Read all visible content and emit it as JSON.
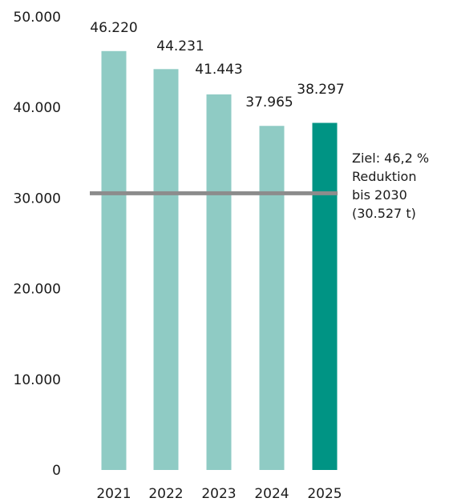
{
  "chart_data": {
    "type": "bar",
    "categories": [
      "2021",
      "2022",
      "2023",
      "2024",
      "2025"
    ],
    "values": [
      46220,
      44231,
      41443,
      37965,
      38297
    ],
    "value_labels": [
      "46.220",
      "44.231",
      "41.443",
      "37.965",
      "38.297"
    ],
    "yticks": [
      0,
      10000,
      20000,
      30000,
      40000,
      50000
    ],
    "ytick_labels": [
      "0",
      "10.000",
      "20.000",
      "30.000",
      "40.000",
      "50.000"
    ],
    "ylim": [
      0,
      50000
    ],
    "grid": false,
    "legend": "none",
    "colors": {
      "bar": "#8fcbc4",
      "highlight_bar": "#009484",
      "target_line": "#8c8c8c"
    },
    "highlight_index": 4,
    "target": {
      "value": 30527,
      "lines": [
        "Ziel: 46,2 %",
        "Reduktion",
        "bis 2030",
        "(30.527 t)"
      ]
    }
  }
}
